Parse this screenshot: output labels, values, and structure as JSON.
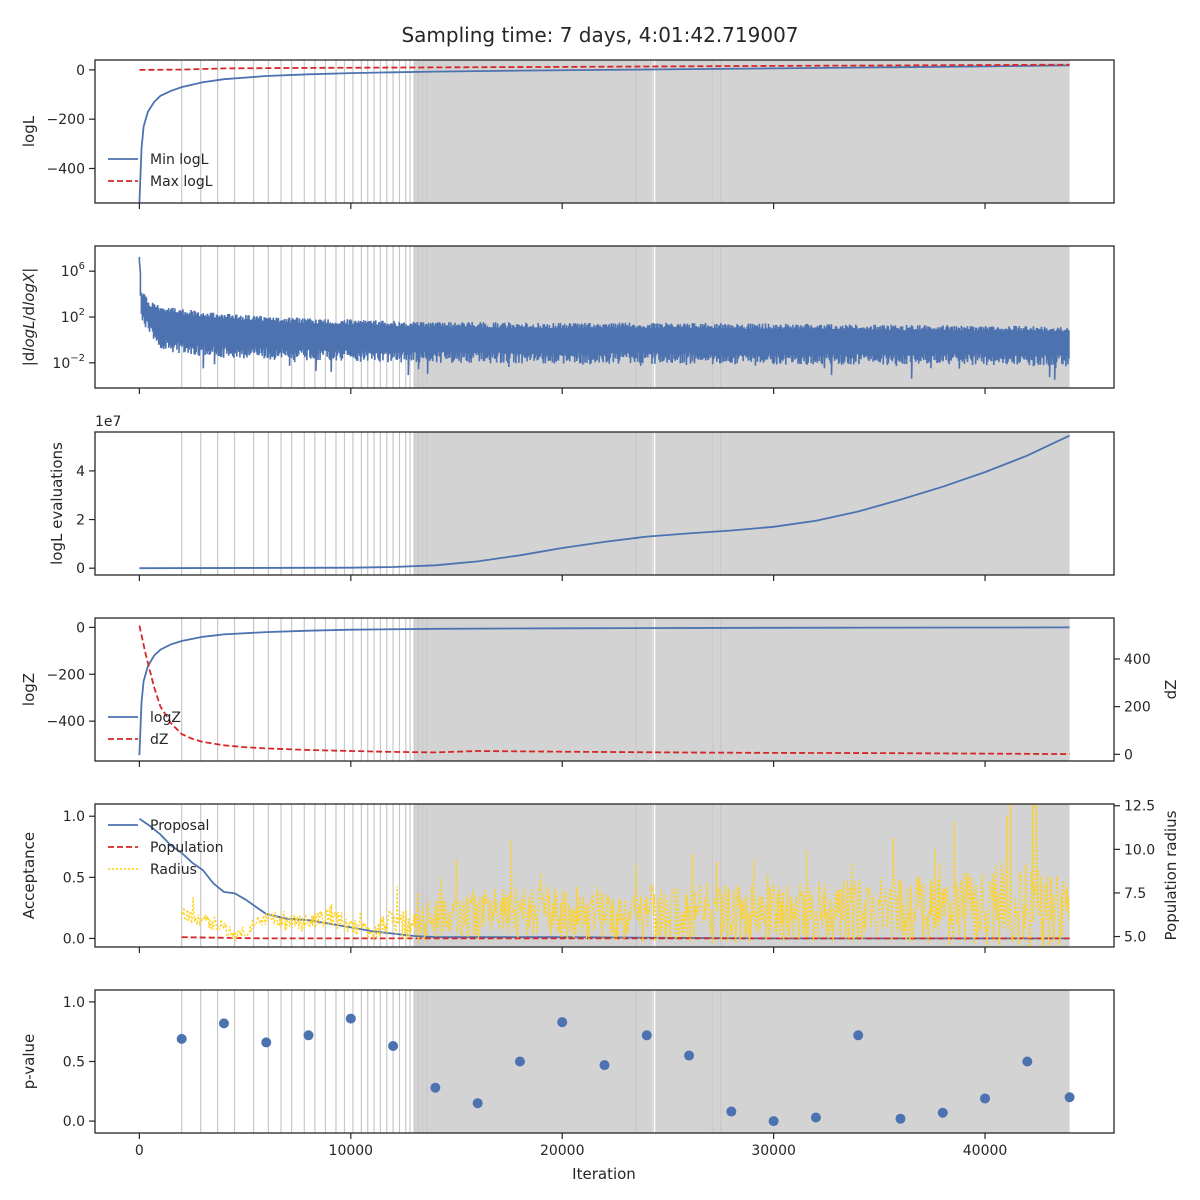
{
  "title": "Sampling time: 7 days, 4:01:42.719007",
  "xlabel": "Iteration",
  "xticks": [
    0,
    10000,
    20000,
    30000,
    40000
  ],
  "xtick_labels": [
    "0",
    "10000",
    "20000",
    "30000",
    "40000"
  ],
  "xlim": [
    -2100,
    46100
  ],
  "style": {
    "blue": "#4c72b0",
    "red": "#d62728",
    "gold": "#ffd21f",
    "shade": "#d3d3d3",
    "vline": "#c8c8c8"
  },
  "insertion_markers": {
    "lines": [
      2000,
      2900,
      3700,
      4500,
      5400,
      6100,
      6700,
      7200,
      7800,
      8300,
      8800,
      9300,
      9700,
      10100,
      10500,
      10800,
      11100,
      11400,
      11700,
      12000,
      12300,
      12600,
      12800,
      13000,
      13200,
      13400,
      13600,
      23500,
      24300,
      27100,
      27500
    ],
    "shaded_spans": [
      [
        13000,
        24250
      ],
      [
        24400,
        44000
      ]
    ]
  },
  "chart_data": [
    {
      "type": "line",
      "ylabel": "logL",
      "ylim": [
        -540,
        40
      ],
      "yticks": [
        0,
        -200,
        -400
      ],
      "ytick_labels": [
        "0",
        "−200",
        "−400"
      ],
      "legend": {
        "placement": "center-left",
        "entries": [
          "Min logL",
          "Max logL"
        ]
      },
      "series": [
        {
          "name": "Min logL",
          "style": "solid",
          "color": "#4c72b0",
          "x": [
            0,
            100,
            200,
            400,
            700,
            1000,
            1500,
            2000,
            3000,
            4000,
            6000,
            8000,
            10000,
            12000,
            14000,
            18000,
            22000,
            26000,
            30000,
            35000,
            40000,
            44000
          ],
          "y": [
            -540,
            -320,
            -230,
            -170,
            -130,
            -105,
            -85,
            -70,
            -50,
            -38,
            -25,
            -18,
            -13,
            -10,
            -7,
            -3,
            0,
            3,
            6,
            10,
            14,
            18
          ]
        },
        {
          "name": "Max logL",
          "style": "dashed",
          "color": "#d62728",
          "x": [
            0,
            2000,
            4000,
            8000,
            14000,
            20000,
            30000,
            44000
          ],
          "y": [
            0,
            1,
            6,
            8,
            10,
            12,
            16,
            21
          ]
        }
      ]
    },
    {
      "type": "line",
      "scale": "log",
      "ylabel": "|dlogL/dlogX|",
      "ylim_log10": [
        -4.2,
        8.2
      ],
      "yticks_log10": [
        6,
        2,
        -2
      ],
      "ytick_labels": [
        "10^6",
        "10^2",
        "10^-2"
      ],
      "series": [
        {
          "name": "",
          "color": "#4c72b0",
          "style": "noisy band",
          "x": [
            0,
            100,
            500,
            1000,
            2000,
            4000,
            7000,
            10000,
            13000,
            20000,
            26000,
            32000,
            38000,
            44000
          ],
          "y_upper_log10": [
            7.3,
            4.4,
            3.4,
            3.0,
            2.7,
            2.3,
            2.0,
            1.8,
            1.6,
            1.5,
            1.5,
            1.4,
            1.3,
            1.2
          ],
          "y_lower_log10": [
            6.0,
            1.5,
            0.3,
            -0.8,
            -1.3,
            -1.6,
            -1.8,
            -1.9,
            -2.0,
            -2.1,
            -2.1,
            -2.2,
            -2.2,
            -2.3
          ]
        }
      ]
    },
    {
      "type": "line",
      "ylabel": "logL evaluations",
      "offset_label": "1e7",
      "ylim": [
        -2800000,
        56000000
      ],
      "yticks": [
        0,
        20000000,
        40000000
      ],
      "ytick_labels": [
        "0",
        "2",
        "4"
      ],
      "series": [
        {
          "name": "",
          "style": "solid",
          "color": "#4c72b0",
          "x": [
            0,
            10000,
            12000,
            14000,
            16000,
            18000,
            20000,
            22000,
            24000,
            26000,
            28000,
            30000,
            32000,
            34000,
            36000,
            38000,
            40000,
            42000,
            44000
          ],
          "y": [
            0,
            200000,
            500000,
            1200000,
            2800000,
            5300000,
            8300000,
            10800000,
            13000000,
            14300000,
            15500000,
            17000000,
            19500000,
            23300000,
            28200000,
            33500000,
            39500000,
            46300000,
            54500000
          ]
        }
      ]
    },
    {
      "type": "line",
      "ylabel": "logZ",
      "ylim": [
        -570,
        40
      ],
      "yticks": [
        0,
        -200,
        -400
      ],
      "ytick_labels": [
        "0",
        "−200",
        "−400"
      ],
      "secondary_ylabel": "dZ",
      "secondary_ylim": [
        -28,
        572
      ],
      "secondary_yticks": [
        0,
        200,
        400
      ],
      "secondary_ytick_labels": [
        "0",
        "200",
        "400"
      ],
      "legend": {
        "placement": "center-left",
        "entries": [
          "logZ",
          "dZ"
        ]
      },
      "series": [
        {
          "name": "logZ",
          "style": "solid",
          "color": "#4c72b0",
          "axis": "left",
          "x": [
            0,
            100,
            200,
            400,
            700,
            1000,
            1500,
            2000,
            3000,
            4000,
            6000,
            8000,
            10000,
            14000,
            20000,
            30000,
            44000
          ],
          "y": [
            -545,
            -320,
            -230,
            -165,
            -120,
            -95,
            -72,
            -58,
            -40,
            -30,
            -20,
            -14,
            -10,
            -6,
            -4,
            -2,
            0
          ]
        },
        {
          "name": "dZ",
          "style": "dashed",
          "color": "#d62728",
          "axis": "right",
          "x": [
            0,
            300,
            700,
            1000,
            1500,
            2000,
            2500,
            3000,
            4000,
            5000,
            6000,
            8000,
            10000,
            12000,
            14000,
            16000,
            20000,
            25000,
            30000,
            35000,
            40000,
            44000
          ],
          "y": [
            540,
            420,
            280,
            200,
            130,
            85,
            65,
            52,
            38,
            30,
            25,
            18,
            14,
            10,
            8,
            14,
            11,
            8,
            6,
            5,
            3,
            1
          ]
        }
      ]
    },
    {
      "type": "line",
      "ylabel": "Acceptance",
      "ylim": [
        -0.07,
        1.1
      ],
      "yticks": [
        0.0,
        0.5,
        1.0
      ],
      "ytick_labels": [
        "0.0",
        "0.5",
        "1.0"
      ],
      "secondary_ylabel": "Population radius",
      "secondary_ylim": [
        4.4,
        12.6
      ],
      "secondary_yticks": [
        5.0,
        7.5,
        10.0,
        12.5
      ],
      "secondary_ytick_labels": [
        "5.0",
        "7.5",
        "10.0",
        "12.5"
      ],
      "legend": {
        "placement": "top-left",
        "entries": [
          "Proposal",
          "Population",
          "Radius"
        ]
      },
      "series": [
        {
          "name": "Proposal",
          "style": "solid",
          "color": "#4c72b0",
          "axis": "left",
          "x": [
            0,
            500,
            1000,
            1500,
            2000,
            2500,
            3000,
            3500,
            4000,
            4500,
            5000,
            6000,
            7000,
            8000,
            9000,
            10000,
            11000,
            12000,
            13000,
            14000,
            20000,
            30000,
            44000
          ],
          "y": [
            0.98,
            0.92,
            0.85,
            0.76,
            0.7,
            0.62,
            0.56,
            0.45,
            0.38,
            0.37,
            0.32,
            0.2,
            0.16,
            0.15,
            0.12,
            0.09,
            0.06,
            0.04,
            0.02,
            0.01,
            0.01,
            0.0,
            0.0
          ]
        },
        {
          "name": "Population",
          "style": "dashed",
          "color": "#d62728",
          "axis": "left",
          "x": [
            2000,
            6000,
            10000,
            14000,
            44000
          ],
          "y": [
            0.01,
            0.0,
            0.0,
            0.0,
            0.0
          ]
        },
        {
          "name": "Radius",
          "style": "dotted",
          "color": "#ffd21f",
          "axis": "right",
          "x": [
            2000,
            3000,
            4000,
            4500,
            5000,
            6000,
            7000,
            8000,
            9000,
            10000,
            11000,
            12000,
            13000,
            14000,
            16000,
            20000,
            25000,
            30000,
            35000,
            40000,
            41000,
            44000
          ],
          "y": [
            6.3,
            5.9,
            5.6,
            5.0,
            5.4,
            6.0,
            5.8,
            5.7,
            6.2,
            5.6,
            5.3,
            5.9,
            5.6,
            6.0,
            6.3,
            6.4,
            6.2,
            6.4,
            6.5,
            6.6,
            6.8,
            6.3
          ],
          "noise_amplitude": [
            0.4,
            0.4,
            0.4,
            0.3,
            0.4,
            0.4,
            0.5,
            0.5,
            0.6,
            0.5,
            0.5,
            0.8,
            1.0,
            1.2,
            1.4,
            1.5,
            1.6,
            1.7,
            1.9,
            2.2,
            3.0,
            2.0
          ]
        }
      ]
    },
    {
      "type": "scatter",
      "ylabel": "p-value",
      "ylim": [
        -0.1,
        1.1
      ],
      "yticks": [
        0.0,
        0.5,
        1.0
      ],
      "ytick_labels": [
        "0.0",
        "0.5",
        "1.0"
      ],
      "series": [
        {
          "name": "",
          "color": "#4c72b0",
          "x": [
            2000,
            4000,
            6000,
            8000,
            10000,
            12000,
            14000,
            16000,
            18000,
            20000,
            22000,
            24000,
            26000,
            28000,
            30000,
            32000,
            34000,
            36000,
            38000,
            40000,
            42000,
            44000
          ],
          "y": [
            0.69,
            0.82,
            0.66,
            0.72,
            0.86,
            0.63,
            0.28,
            0.15,
            0.5,
            0.83,
            0.47,
            0.72,
            0.55,
            0.08,
            0.0,
            0.03,
            0.72,
            0.02,
            0.07,
            0.19,
            0.5,
            0.2
          ]
        }
      ]
    }
  ]
}
